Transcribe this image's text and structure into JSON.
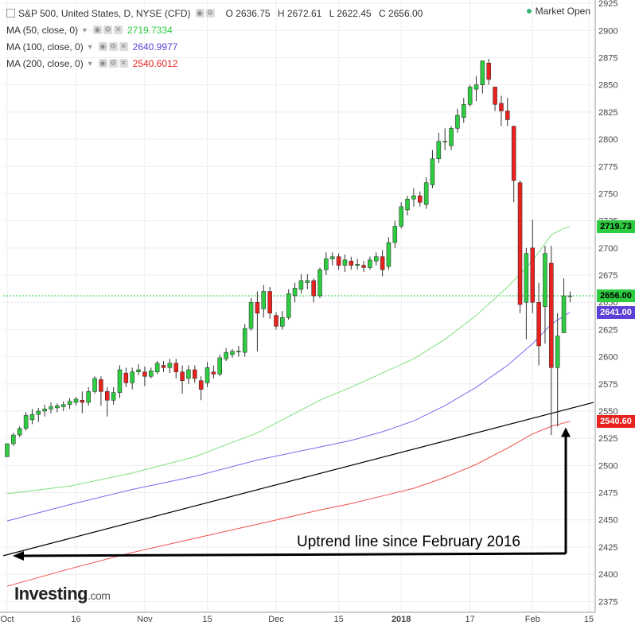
{
  "header": {
    "instrument": "S&P 500, United States, D, NYSE (CFD)",
    "ohlc": {
      "o": "O 2636.75",
      "h": "H 2672.61",
      "l": "L 2622.45",
      "c": "C 2656.00"
    },
    "market_status": "Market Open",
    "ma_rows": [
      {
        "label": "MA (50, close, 0)",
        "value": "2719.7334",
        "color": "#2ecc40"
      },
      {
        "label": "MA (100, close, 0)",
        "value": "2640.9977",
        "color": "#5b3fd6"
      },
      {
        "label": "MA (200, close, 0)",
        "value": "2540.6012",
        "color": "#e8221f"
      }
    ]
  },
  "annotation": "Uptrend line since February 2016",
  "logo": {
    "text": "Investing",
    "suffix": ".com"
  },
  "price_tags": [
    {
      "label": "2719.73",
      "value": 2719.73,
      "bg": "#2ecc40",
      "fg": "#000000"
    },
    {
      "label": "2656.00",
      "value": 2656.0,
      "bg": "#2ecc40",
      "fg": "#000000"
    },
    {
      "label": "2641.00",
      "value": 2641.0,
      "bg": "#5b3fd6",
      "fg": "#ffffff"
    },
    {
      "label": "2540.60",
      "value": 2540.6,
      "bg": "#e8221f",
      "fg": "#ffffff"
    }
  ],
  "colors": {
    "up": "#2ecc40",
    "down": "#e8221f",
    "ma50": "#7ee07e",
    "ma100": "#7b68ee",
    "ma200": "#f0504a",
    "trend": "#000000"
  },
  "chart_data": {
    "type": "candlestick",
    "title": "S&P 500, United States, D, NYSE (CFD)",
    "ylim": [
      2365,
      2928
    ],
    "y_ticks": [
      2375,
      2400,
      2425,
      2450,
      2475,
      2500,
      2525,
      2550,
      2575,
      2600,
      2625,
      2650,
      2675,
      2700,
      2725,
      2750,
      2775,
      2800,
      2825,
      2850,
      2875,
      2900,
      2925
    ],
    "x_ticks": [
      "Oct",
      "16",
      "Nov",
      "15",
      "Dec",
      "15",
      "2018",
      "17",
      "Feb",
      "15"
    ],
    "x_tick_index": [
      0,
      11,
      22,
      32,
      43,
      53,
      63,
      74,
      84,
      93
    ],
    "bars": 91,
    "candles": [
      [
        2508,
        2520,
        2508,
        2520
      ],
      [
        2520,
        2530,
        2518,
        2528
      ],
      [
        2528,
        2536,
        2526,
        2534
      ],
      [
        2534,
        2549,
        2532,
        2546
      ],
      [
        2542,
        2552,
        2538,
        2547
      ],
      [
        2547,
        2553,
        2540,
        2550
      ],
      [
        2550,
        2556,
        2545,
        2552
      ],
      [
        2552,
        2558,
        2548,
        2554
      ],
      [
        2553,
        2557,
        2549,
        2555
      ],
      [
        2554,
        2559,
        2550,
        2556
      ],
      [
        2556,
        2562,
        2552,
        2559
      ],
      [
        2558,
        2563,
        2555,
        2561
      ],
      [
        2560,
        2568,
        2548,
        2558
      ],
      [
        2558,
        2572,
        2555,
        2568
      ],
      [
        2568,
        2582,
        2566,
        2580
      ],
      [
        2579,
        2582,
        2555,
        2568
      ],
      [
        2568,
        2572,
        2545,
        2560
      ],
      [
        2560,
        2572,
        2556,
        2567
      ],
      [
        2567,
        2592,
        2562,
        2588
      ],
      [
        2585,
        2590,
        2572,
        2576
      ],
      [
        2576,
        2590,
        2570,
        2586
      ],
      [
        2586,
        2593,
        2583,
        2588
      ],
      [
        2586,
        2591,
        2573,
        2582
      ],
      [
        2582,
        2590,
        2580,
        2587
      ],
      [
        2586,
        2596,
        2584,
        2594
      ],
      [
        2592,
        2596,
        2586,
        2590
      ],
      [
        2590,
        2598,
        2585,
        2594
      ],
      [
        2594,
        2598,
        2580,
        2586
      ],
      [
        2586,
        2592,
        2566,
        2578
      ],
      [
        2580,
        2592,
        2575,
        2588
      ],
      [
        2588,
        2592,
        2576,
        2580
      ],
      [
        2578,
        2582,
        2560,
        2570
      ],
      [
        2576,
        2595,
        2572,
        2590
      ],
      [
        2586,
        2592,
        2580,
        2584
      ],
      [
        2584,
        2602,
        2582,
        2599
      ],
      [
        2598,
        2608,
        2596,
        2604
      ],
      [
        2602,
        2607,
        2599,
        2605
      ],
      [
        2605,
        2610,
        2600,
        2605
      ],
      [
        2604,
        2630,
        2600,
        2626
      ],
      [
        2626,
        2654,
        2624,
        2650
      ],
      [
        2650,
        2660,
        2605,
        2640
      ],
      [
        2644,
        2666,
        2636,
        2660
      ],
      [
        2660,
        2664,
        2635,
        2640
      ],
      [
        2638,
        2641,
        2625,
        2628
      ],
      [
        2628,
        2642,
        2625,
        2636
      ],
      [
        2636,
        2662,
        2634,
        2658
      ],
      [
        2656,
        2668,
        2650,
        2663
      ],
      [
        2662,
        2676,
        2658,
        2670
      ],
      [
        2668,
        2676,
        2662,
        2670
      ],
      [
        2670,
        2672,
        2650,
        2656
      ],
      [
        2656,
        2682,
        2654,
        2680
      ],
      [
        2680,
        2696,
        2675,
        2690
      ],
      [
        2690,
        2696,
        2684,
        2692
      ],
      [
        2692,
        2695,
        2680,
        2684
      ],
      [
        2684,
        2694,
        2678,
        2689
      ],
      [
        2688,
        2692,
        2680,
        2684
      ],
      [
        2684,
        2690,
        2680,
        2685
      ],
      [
        2684,
        2688,
        2678,
        2682
      ],
      [
        2682,
        2692,
        2680,
        2689
      ],
      [
        2688,
        2696,
        2684,
        2692
      ],
      [
        2692,
        2698,
        2674,
        2680
      ],
      [
        2683,
        2710,
        2680,
        2705
      ],
      [
        2705,
        2725,
        2700,
        2720
      ],
      [
        2720,
        2742,
        2718,
        2738
      ],
      [
        2735,
        2748,
        2730,
        2745
      ],
      [
        2745,
        2755,
        2738,
        2748
      ],
      [
        2748,
        2752,
        2738,
        2742
      ],
      [
        2740,
        2765,
        2736,
        2760
      ],
      [
        2758,
        2790,
        2755,
        2782
      ],
      [
        2782,
        2806,
        2778,
        2798
      ],
      [
        2798,
        2810,
        2790,
        2798
      ],
      [
        2794,
        2812,
        2790,
        2810
      ],
      [
        2810,
        2828,
        2806,
        2822
      ],
      [
        2820,
        2838,
        2815,
        2832
      ],
      [
        2832,
        2850,
        2830,
        2848
      ],
      [
        2846,
        2858,
        2835,
        2850
      ],
      [
        2850,
        2872,
        2842,
        2872
      ],
      [
        2870,
        2874,
        2850,
        2855
      ],
      [
        2848,
        2844,
        2826,
        2832
      ],
      [
        2833,
        2840,
        2812,
        2826
      ],
      [
        2826,
        2838,
        2812,
        2818
      ],
      [
        2812,
        2810,
        2742,
        2762
      ],
      [
        2760,
        2762,
        2640,
        2648
      ],
      [
        2650,
        2700,
        2616,
        2695
      ],
      [
        2700,
        2726,
        2640,
        2650
      ],
      [
        2650,
        2668,
        2592,
        2610
      ],
      [
        2646,
        2702,
        2612,
        2695
      ],
      [
        2686,
        2702,
        2528,
        2590
      ],
      [
        2590,
        2640,
        2536,
        2619
      ],
      [
        2622,
        2672,
        2622,
        2656
      ],
      [
        2656,
        2660,
        2650,
        2656
      ]
    ],
    "ma50": {
      "name": "MA (50, close, 0)",
      "values_at": [
        [
          0,
          2474
        ],
        [
          10,
          2481
        ],
        [
          20,
          2493
        ],
        [
          30,
          2508
        ],
        [
          40,
          2530
        ],
        [
          50,
          2560
        ],
        [
          55,
          2572
        ],
        [
          60,
          2585
        ],
        [
          65,
          2598
        ],
        [
          70,
          2616
        ],
        [
          75,
          2638
        ],
        [
          80,
          2664
        ],
        [
          84,
          2688
        ],
        [
          87,
          2712
        ],
        [
          89,
          2718
        ],
        [
          90,
          2719.7
        ]
      ]
    },
    "ma100": {
      "name": "MA (100, close, 0)",
      "values_at": [
        [
          0,
          2449
        ],
        [
          10,
          2464
        ],
        [
          20,
          2478
        ],
        [
          30,
          2490
        ],
        [
          40,
          2505
        ],
        [
          50,
          2517
        ],
        [
          55,
          2523
        ],
        [
          60,
          2531
        ],
        [
          65,
          2541
        ],
        [
          70,
          2555
        ],
        [
          75,
          2572
        ],
        [
          80,
          2592
        ],
        [
          84,
          2612
        ],
        [
          87,
          2630
        ],
        [
          90,
          2641
        ]
      ]
    },
    "ma200": {
      "name": "MA (200, close, 0)",
      "values_at": [
        [
          0,
          2389
        ],
        [
          10,
          2405
        ],
        [
          20,
          2420
        ],
        [
          30,
          2433
        ],
        [
          40,
          2446
        ],
        [
          50,
          2459
        ],
        [
          55,
          2465
        ],
        [
          60,
          2472
        ],
        [
          65,
          2479
        ],
        [
          70,
          2489
        ],
        [
          75,
          2501
        ],
        [
          80,
          2516
        ],
        [
          84,
          2529
        ],
        [
          87,
          2536
        ],
        [
          90,
          2540.6
        ]
      ]
    },
    "trendline": {
      "from": [
        0,
        2417
      ],
      "to": [
        91,
        2558
      ]
    },
    "current_price_line": 2656.0
  }
}
